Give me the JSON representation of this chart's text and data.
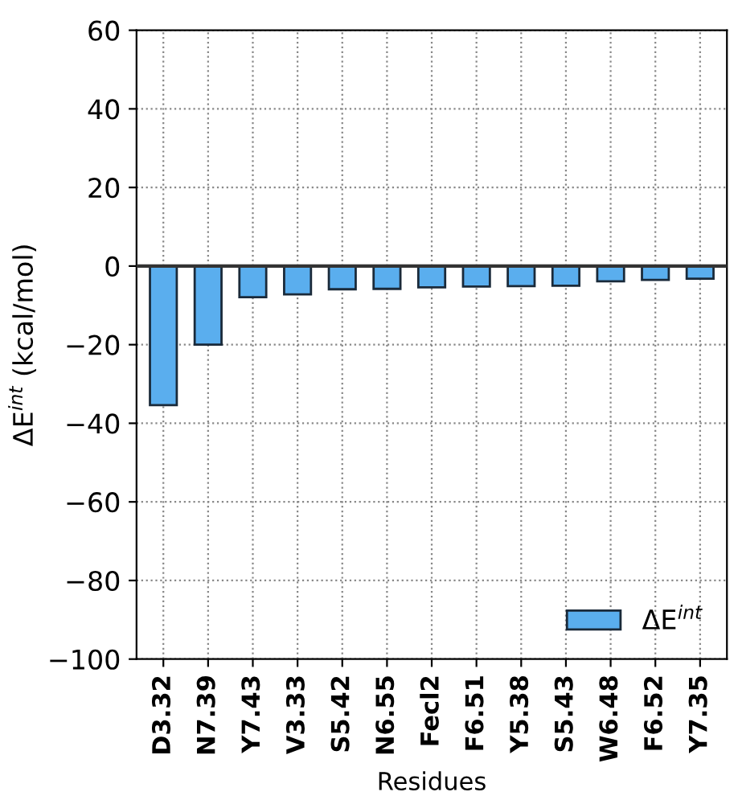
{
  "chart_data": {
    "type": "bar",
    "xlabel": "Residues",
    "ylabel": "ΔE$^{int}$ (kcal/mol)",
    "categories": [
      "D3.32",
      "N7.39",
      "Y7.43",
      "V3.33",
      "S5.42",
      "N6.55",
      "Fecl2",
      "F6.51",
      "Y5.38",
      "S5.43",
      "W6.48",
      "F6.52",
      "Y7.35"
    ],
    "series": [
      {
        "name": "ΔE$^{int}$",
        "color": "#5aaeee",
        "values": [
          -35.4,
          -20,
          -7.9,
          -7.2,
          -5.9,
          -5.8,
          -5.4,
          -5.2,
          -5.1,
          -5.0,
          -3.9,
          -3.5,
          -3.2
        ]
      }
    ],
    "ylim": [
      -100,
      60
    ],
    "yticks": [
      {
        "value": -100,
        "label": "−100"
      },
      {
        "value": -80,
        "label": "−80"
      },
      {
        "value": -60,
        "label": "−60"
      },
      {
        "value": -40,
        "label": "−40"
      },
      {
        "value": -20,
        "label": "−20"
      },
      0,
      20,
      40,
      60
    ],
    "grid": true,
    "legend": "bottom right"
  }
}
